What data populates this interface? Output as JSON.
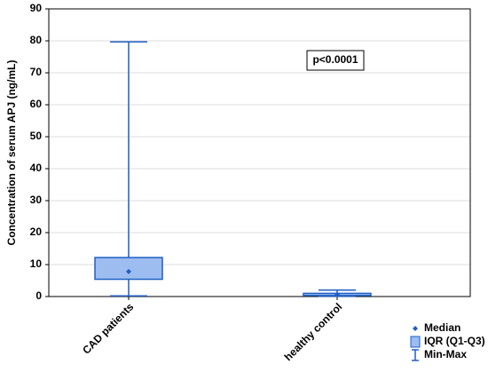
{
  "chart_data": {
    "type": "box",
    "y_label": "Concentration of serum APJ (ng/mL)",
    "categories": [
      "CAD patients",
      "healthy control"
    ],
    "min": [
      0.2,
      0.1
    ],
    "q1": [
      5.4,
      0.3
    ],
    "median": [
      7.8,
      0.6
    ],
    "q3": [
      12.2,
      1.0
    ],
    "max": [
      79.7,
      2.0
    ],
    "color": "#1f5fc4",
    "fill": "#9dbdf0",
    "ylim": [
      0,
      90
    ],
    "yticks": [
      0,
      10,
      20,
      30,
      40,
      50,
      60,
      70,
      80,
      90
    ],
    "grid": true,
    "annotation": "p<0.0001",
    "legend": [
      "Median",
      "IQR (Q1-Q3)",
      "Min-Max"
    ]
  }
}
